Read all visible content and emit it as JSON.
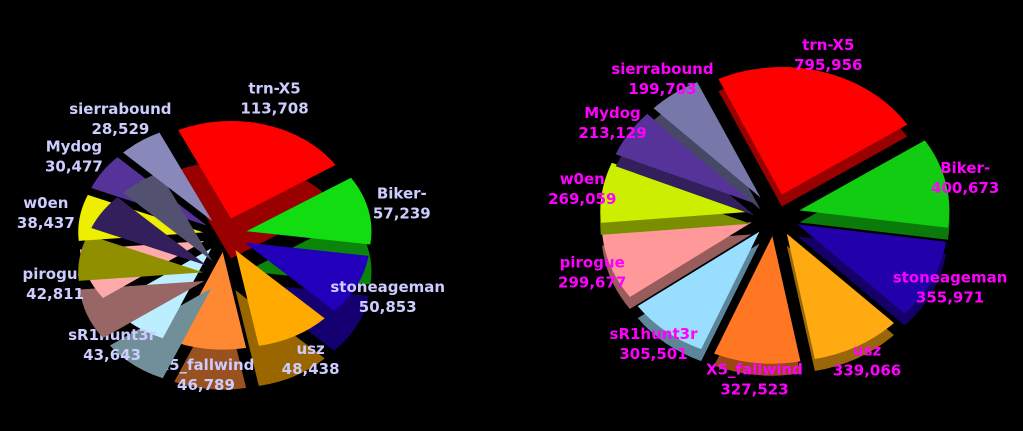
{
  "chart_data": [
    {
      "type": "pie",
      "categories": [
        "trn-X5",
        "Biker-",
        "stoneageman",
        "usz",
        "X5_fallwind",
        "sR1hunt3r",
        "pirogue",
        "w0en",
        "Mydog",
        "sierrabound"
      ],
      "values": [
        113708,
        57239,
        50853,
        48438,
        46789,
        43643,
        42811,
        38437,
        30477,
        28529
      ],
      "value_labels": [
        "113,708",
        "57,239",
        "50,853",
        "48,438",
        "46,789",
        "43,643",
        "42,811",
        "38,437",
        "30,477",
        "28,529"
      ],
      "colors": [
        "#ff0000",
        "#11dd11",
        "#2200bb",
        "#ffaa00",
        "#ff8833",
        "#bbeeff",
        "#ffaaaa",
        "#eeee00",
        "#553399",
        "#8888bb"
      ],
      "label_color": "#ccccff"
    },
    {
      "type": "pie",
      "categories": [
        "trn-X5",
        "Biker-",
        "stoneageman",
        "usz",
        "X5_fallwind",
        "sR1hunt3r",
        "pirogue",
        "w0en",
        "Mydog",
        "sierrabound"
      ],
      "values": [
        795956,
        400673,
        355971,
        339066,
        327523,
        305501,
        299677,
        269059,
        213129,
        199703
      ],
      "value_labels": [
        "795,956",
        "400,673",
        "355,971",
        "339,066",
        "327,523",
        "305,501",
        "299,677",
        "269,059",
        "213,129",
        "199,703"
      ],
      "colors": [
        "#ff0000",
        "#11cc11",
        "#2200aa",
        "#ffaa11",
        "#ff7722",
        "#99ddff",
        "#ff9999",
        "#ccee00",
        "#553399",
        "#7777aa"
      ],
      "label_color": "#ff00ff"
    }
  ]
}
